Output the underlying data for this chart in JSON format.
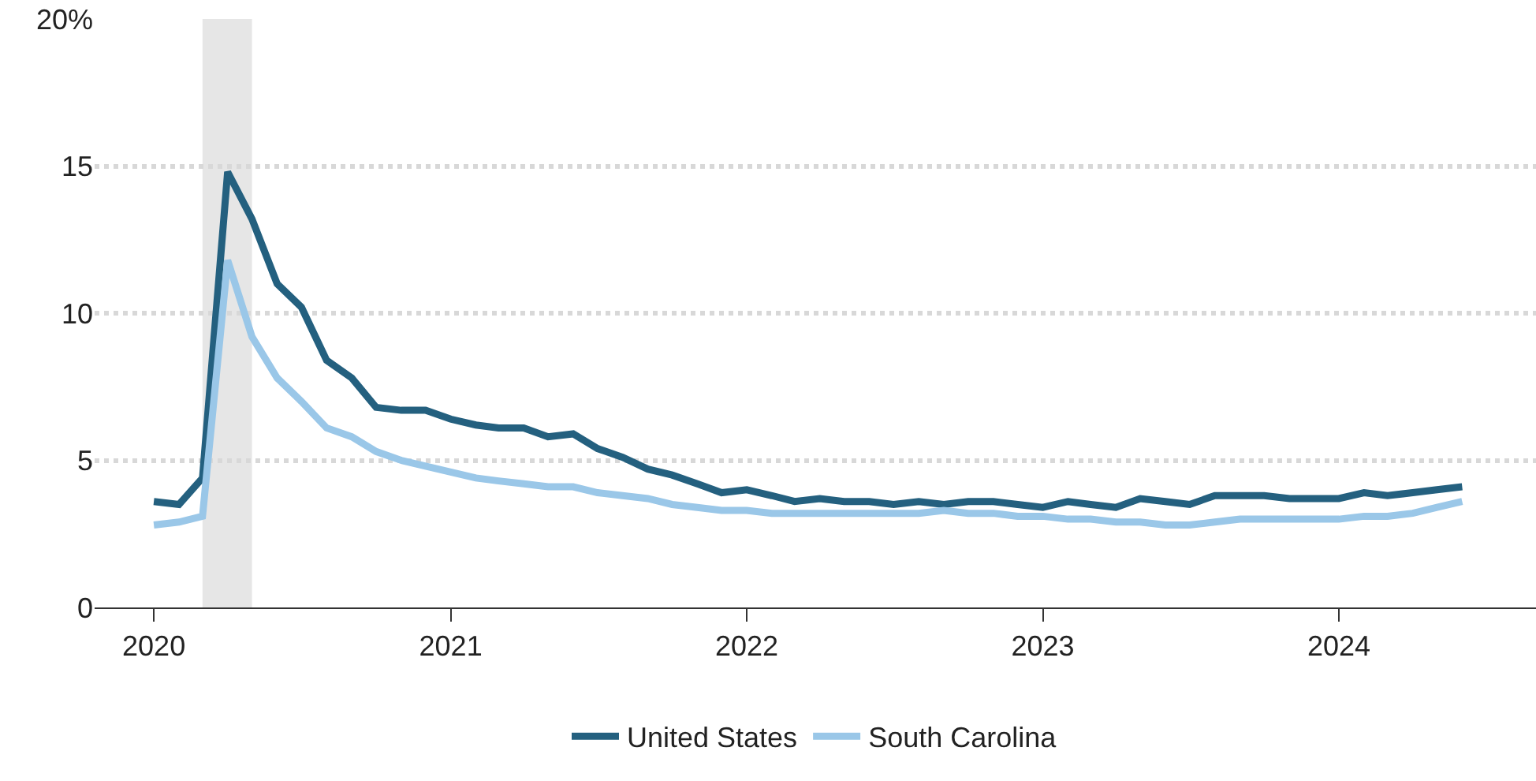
{
  "chart_data": {
    "type": "line",
    "x": [
      "2020-01",
      "2020-02",
      "2020-03",
      "2020-04",
      "2020-05",
      "2020-06",
      "2020-07",
      "2020-08",
      "2020-09",
      "2020-10",
      "2020-11",
      "2020-12",
      "2021-01",
      "2021-02",
      "2021-03",
      "2021-04",
      "2021-05",
      "2021-06",
      "2021-07",
      "2021-08",
      "2021-09",
      "2021-10",
      "2021-11",
      "2021-12",
      "2022-01",
      "2022-02",
      "2022-03",
      "2022-04",
      "2022-05",
      "2022-06",
      "2022-07",
      "2022-08",
      "2022-09",
      "2022-10",
      "2022-11",
      "2022-12",
      "2023-01",
      "2023-02",
      "2023-03",
      "2023-04",
      "2023-05",
      "2023-06",
      "2023-07",
      "2023-08",
      "2023-09",
      "2023-10",
      "2023-11",
      "2023-12",
      "2024-01",
      "2024-02",
      "2024-03",
      "2024-04",
      "2024-05",
      "2024-06"
    ],
    "series": [
      {
        "name": "United States",
        "color": "#24607f",
        "values": [
          3.6,
          3.5,
          4.4,
          14.8,
          13.2,
          11.0,
          10.2,
          8.4,
          7.8,
          6.8,
          6.7,
          6.7,
          6.4,
          6.2,
          6.1,
          6.1,
          5.8,
          5.9,
          5.4,
          5.1,
          4.7,
          4.5,
          4.2,
          3.9,
          4.0,
          3.8,
          3.6,
          3.7,
          3.6,
          3.6,
          3.5,
          3.6,
          3.5,
          3.6,
          3.6,
          3.5,
          3.4,
          3.6,
          3.5,
          3.4,
          3.7,
          3.6,
          3.5,
          3.8,
          3.8,
          3.8,
          3.7,
          3.7,
          3.7,
          3.9,
          3.8,
          3.9,
          4.0,
          4.1
        ]
      },
      {
        "name": "South Carolina",
        "color": "#9ac7e8",
        "values": [
          2.8,
          2.9,
          3.1,
          11.8,
          9.2,
          7.8,
          7.0,
          6.1,
          5.8,
          5.3,
          5.0,
          4.8,
          4.6,
          4.4,
          4.3,
          4.2,
          4.1,
          4.1,
          3.9,
          3.8,
          3.7,
          3.5,
          3.4,
          3.3,
          3.3,
          3.2,
          3.2,
          3.2,
          3.2,
          3.2,
          3.2,
          3.2,
          3.3,
          3.2,
          3.2,
          3.1,
          3.1,
          3.0,
          3.0,
          2.9,
          2.9,
          2.8,
          2.8,
          2.9,
          3.0,
          3.0,
          3.0,
          3.0,
          3.0,
          3.1,
          3.1,
          3.2,
          3.4,
          3.6
        ]
      }
    ],
    "xlim": [
      "2019-10-20",
      "2024-08-31"
    ],
    "xticks": [
      {
        "value": "2020-01-01",
        "label": "2020"
      },
      {
        "value": "2021-01-01",
        "label": "2021"
      },
      {
        "value": "2022-01-01",
        "label": "2022"
      },
      {
        "value": "2023-01-01",
        "label": "2023"
      },
      {
        "value": "2024-01-01",
        "label": "2024"
      }
    ],
    "ylim": [
      0,
      20
    ],
    "yticks": [
      0,
      5,
      10,
      15,
      {
        "value": 20,
        "label": "20%"
      }
    ],
    "bands": [
      {
        "axis": "x",
        "from": "2020-03",
        "to": "2020-05",
        "color": "#e6e6e6"
      }
    ],
    "grid": "y",
    "legend": "bottom",
    "line_style": "solid",
    "marker": "none"
  }
}
